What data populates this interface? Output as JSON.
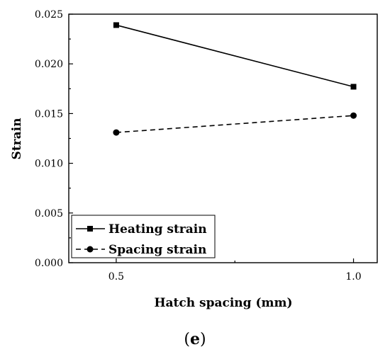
{
  "chart_data": {
    "type": "line",
    "xlabel": "Hatch spacing (mm)",
    "ylabel": "Strain",
    "x": [
      0.5,
      1.0
    ],
    "xticks": [
      "0.5",
      "1.0"
    ],
    "xlim": [
      0.4,
      1.05
    ],
    "ylim": [
      0.0,
      0.025
    ],
    "yticks": [
      "0.000",
      "0.005",
      "0.010",
      "0.015",
      "0.020",
      "0.025"
    ],
    "series": [
      {
        "name": "Heating strain",
        "values": [
          0.0239,
          0.0177
        ],
        "line": "solid",
        "marker": "square",
        "color": "#000000"
      },
      {
        "name": "Spacing strain",
        "values": [
          0.0131,
          0.0148
        ],
        "line": "dashed",
        "marker": "circle",
        "color": "#000000"
      }
    ],
    "grid": false,
    "legend_position": "bottom-left"
  },
  "panel_label": {
    "open": "(",
    "letter": "e",
    "close": ")"
  }
}
